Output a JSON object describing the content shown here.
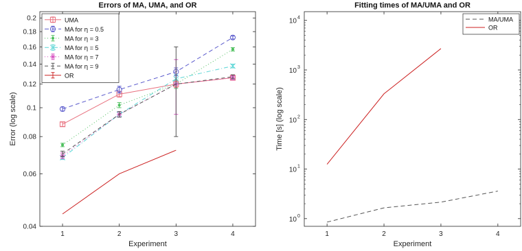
{
  "chart_data": [
    {
      "type": "line",
      "title": "Errors of MA, UMA, and OR",
      "xlabel": "Experiment",
      "ylabel": "Error (log scale)",
      "yscale": "log",
      "xlim": [
        0.6,
        4.4
      ],
      "ylim": [
        0.04,
        0.21
      ],
      "xticks": [
        1,
        2,
        3,
        4
      ],
      "xtick_labels": [
        "1",
        "2",
        "3",
        "4"
      ],
      "yticks": [
        0.04,
        0.06,
        0.08,
        0.1,
        0.12,
        0.14,
        0.16,
        0.18,
        0.2
      ],
      "ytick_labels": [
        "0.04",
        "0.06",
        "0.08",
        "0.1",
        "0.12",
        "0.14",
        "0.16",
        "0.18",
        "0.2"
      ],
      "grid": false,
      "legend": "top-left",
      "series": [
        {
          "name": "UMA",
          "color": "#e8707e",
          "dash": "none",
          "marker": "square",
          "x": [
            1,
            2,
            3,
            4
          ],
          "y": [
            0.088,
            0.111,
            0.12,
            0.126
          ],
          "err": [
            0.0015,
            0.0025,
            0.003,
            0.002
          ]
        },
        {
          "name": "MA for η = 0.5",
          "prefix": "MA for ",
          "eta": "η",
          "suffix": " = 0.5",
          "color": "#5a5acc",
          "dash": "6 4",
          "marker": "circle",
          "x": [
            1,
            2,
            3,
            4
          ],
          "y": [
            0.099,
            0.115,
            0.132,
            0.172
          ],
          "err": [
            0.0015,
            0.003,
            0.004,
            0.002
          ]
        },
        {
          "name": "MA for η = 3",
          "prefix": "MA for ",
          "eta": "η",
          "suffix": " = 3",
          "color": "#4fc05f",
          "dash": "1 3",
          "marker": "point",
          "x": [
            1,
            2,
            3,
            4
          ],
          "y": [
            0.075,
            0.102,
            0.12,
            0.157
          ],
          "err": [
            0.001,
            0.002,
            0.004,
            0.002
          ]
        },
        {
          "name": "MA for η = 5",
          "prefix": "MA for ",
          "eta": "η",
          "suffix": " = 5",
          "color": "#5ad6d6",
          "dash": "6 3 1 3",
          "marker": "x",
          "x": [
            1,
            2,
            3,
            4
          ],
          "y": [
            0.068,
            0.095,
            0.125,
            0.138
          ],
          "err": [
            0.001,
            0.002,
            0.004,
            0.002
          ]
        },
        {
          "name": "MA for η = 7",
          "prefix": "MA for ",
          "eta": "η",
          "suffix": " = 7",
          "color": "#d64fc0",
          "dash": "1 3",
          "marker": "star",
          "x": [
            1,
            2,
            3,
            4
          ],
          "y": [
            0.069,
            0.095,
            0.12,
            0.126
          ],
          "err": [
            0.0015,
            0.002,
            0.025,
            0.002
          ]
        },
        {
          "name": "MA for η = 9",
          "prefix": "MA for ",
          "eta": "η",
          "suffix": " = 9",
          "color": "#555555",
          "dash": "5 4",
          "marker": "none",
          "x": [
            1,
            2,
            3,
            4
          ],
          "y": [
            0.07,
            0.095,
            0.12,
            0.127
          ],
          "err": [
            0.0015,
            0.002,
            0.04,
            0.002
          ]
        },
        {
          "name": "OR",
          "color": "#cc2222",
          "dash": "none",
          "marker": "none",
          "x": [
            1,
            2,
            3
          ],
          "y": [
            0.044,
            0.06,
            0.072
          ],
          "err": [
            0,
            0,
            0
          ]
        }
      ]
    },
    {
      "type": "line",
      "title": "Fitting times of MA/UMA and OR",
      "xlabel": "Experiment",
      "ylabel": "Time [s] (log scale)",
      "yscale": "log",
      "xlim": [
        0.6,
        4.4
      ],
      "ylim": [
        0.7,
        15000
      ],
      "xticks": [
        1,
        2,
        3,
        4
      ],
      "xtick_labels": [
        "1",
        "2",
        "3",
        "4"
      ],
      "yticks": [
        1,
        10,
        100,
        1000,
        10000
      ],
      "ytick_labels": [
        {
          "base": "10",
          "exp": "0"
        },
        {
          "base": "10",
          "exp": "1"
        },
        {
          "base": "10",
          "exp": "2"
        },
        {
          "base": "10",
          "exp": "3"
        },
        {
          "base": "10",
          "exp": "4"
        }
      ],
      "grid": false,
      "legend": "top-right",
      "series": [
        {
          "name": "MA/UMA",
          "color": "#555555",
          "dash": "6 4",
          "x": [
            1,
            2,
            3,
            4
          ],
          "y": [
            0.85,
            1.65,
            2.15,
            3.6
          ]
        },
        {
          "name": "OR",
          "color": "#cc2222",
          "dash": "none",
          "x": [
            1,
            2,
            3
          ],
          "y": [
            12.5,
            330,
            2700
          ]
        }
      ]
    }
  ]
}
